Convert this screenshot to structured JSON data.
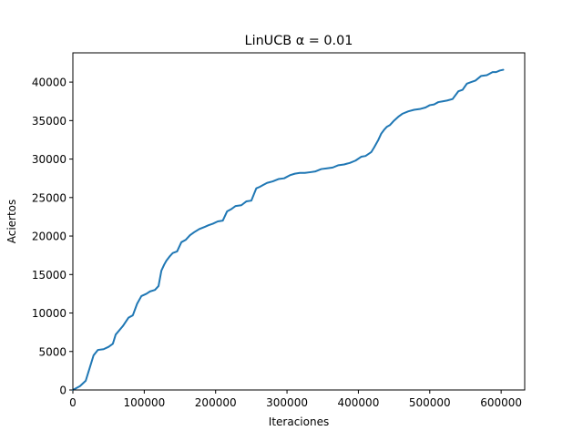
{
  "chart_data": {
    "type": "line",
    "title": "LinUCB α =  0.01",
    "xlabel": "Iteraciones",
    "ylabel": "Aciertos",
    "xlim": [
      0,
      633000
    ],
    "ylim": [
      0,
      43800
    ],
    "xticks": [
      0,
      100000,
      200000,
      300000,
      400000,
      500000,
      600000
    ],
    "xtick_labels": [
      "0",
      "100000",
      "200000",
      "300000",
      "400000",
      "500000",
      "600000"
    ],
    "yticks": [
      0,
      5000,
      10000,
      15000,
      20000,
      25000,
      30000,
      35000,
      40000
    ],
    "ytick_labels": [
      "0",
      "5000",
      "10000",
      "15000",
      "20000",
      "25000",
      "30000",
      "35000",
      "40000"
    ],
    "grid": false,
    "series": [
      {
        "name": "",
        "color": "#1f77b4",
        "x": [
          0,
          10000,
          18000,
          24000,
          29000,
          35000,
          43000,
          50000,
          56000,
          60000,
          70000,
          78000,
          84000,
          90000,
          96000,
          103000,
          108000,
          115000,
          120000,
          124000,
          128000,
          131000,
          136000,
          140000,
          146000,
          152000,
          158000,
          164000,
          170000,
          177000,
          185000,
          190000,
          196000,
          203000,
          210000,
          216000,
          222000,
          228000,
          236000,
          243000,
          250000,
          257000,
          262000,
          266000,
          272000,
          280000,
          288000,
          296000,
          304000,
          311000,
          318000,
          325000,
          333000,
          340000,
          348000,
          356000,
          364000,
          372000,
          380000,
          388000,
          396000,
          404000,
          410000,
          418000,
          422000,
          428000,
          432000,
          436000,
          440000,
          444000,
          450000,
          456000,
          462000,
          470000,
          478000,
          486000,
          494000,
          500000,
          506000,
          512000,
          518000,
          524000,
          532000,
          540000,
          546000,
          552000,
          558000,
          564000,
          572000,
          580000,
          588000,
          593000,
          598000,
          603000
        ],
        "y": [
          0,
          500,
          1200,
          3000,
          4500,
          5200,
          5300,
          5600,
          6000,
          7200,
          8300,
          9400,
          9700,
          11200,
          12200,
          12500,
          12800,
          13000,
          13500,
          15500,
          16300,
          16800,
          17400,
          17800,
          18000,
          19200,
          19500,
          20100,
          20500,
          20900,
          21200,
          21400,
          21600,
          21900,
          22000,
          23200,
          23500,
          23900,
          24000,
          24500,
          24600,
          26200,
          26400,
          26600,
          26900,
          27100,
          27400,
          27500,
          27900,
          28100,
          28200,
          28200,
          28300,
          28400,
          28700,
          28800,
          28900,
          29200,
          29300,
          29500,
          29800,
          30300,
          30400,
          30900,
          31500,
          32500,
          33300,
          33800,
          34200,
          34400,
          35000,
          35500,
          35900,
          36200,
          36400,
          36500,
          36700,
          37000,
          37100,
          37400,
          37500,
          37600,
          37800,
          38800,
          39000,
          39800,
          40000,
          40200,
          40800,
          40900,
          41300,
          41300,
          41500,
          41600
        ]
      }
    ]
  }
}
